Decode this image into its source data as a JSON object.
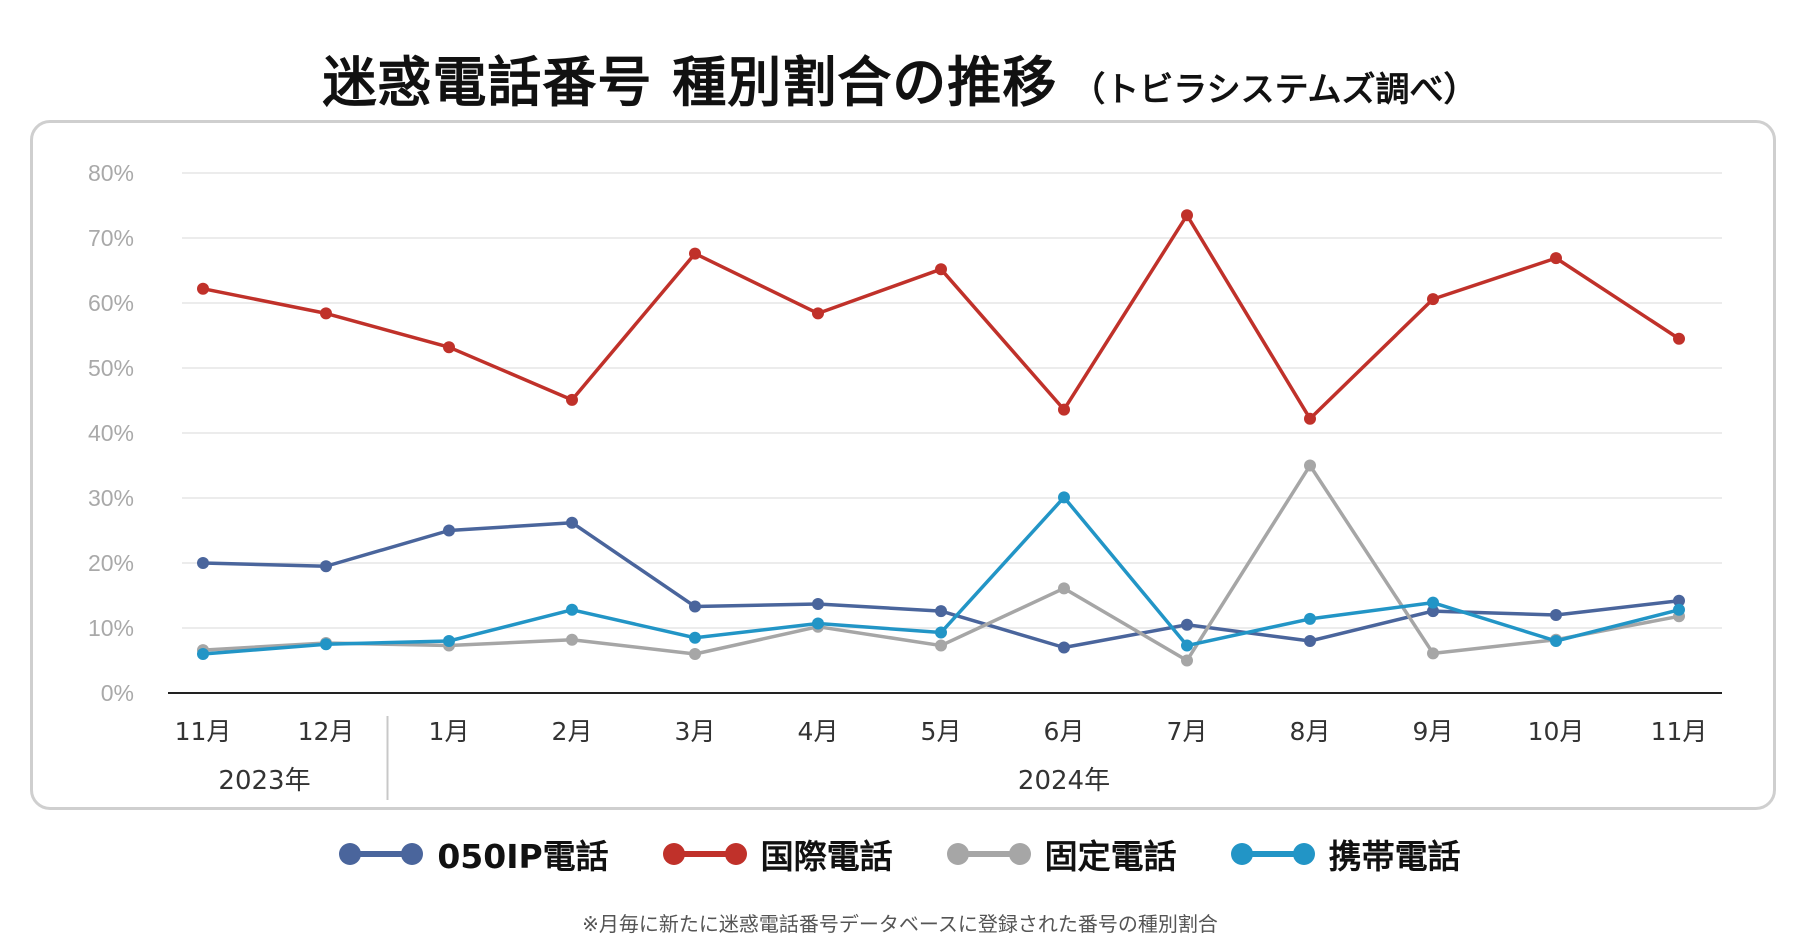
{
  "title": {
    "main": "迷惑電話番号 種別割合の推移",
    "sub": "（トビラシステムズ調べ）"
  },
  "footnote": "※月毎に新たに迷惑電話番号データベースに登録された番号の種別割合",
  "chart_data": {
    "type": "line",
    "title": "迷惑電話番号 種別割合の推移",
    "categories": [
      "11月",
      "12月",
      "1月",
      "2月",
      "3月",
      "4月",
      "5月",
      "6月",
      "7月",
      "8月",
      "9月",
      "10月",
      "11月"
    ],
    "year_groups": [
      {
        "label": "2023年",
        "start": 0,
        "end": 1
      },
      {
        "label": "2024年",
        "start": 2,
        "end": 12
      }
    ],
    "yticks": [
      "0%",
      "10%",
      "20%",
      "30%",
      "40%",
      "50%",
      "60%",
      "70%",
      "80%"
    ],
    "ylim": [
      0,
      80
    ],
    "grid": true,
    "legend_position": "bottom",
    "series": [
      {
        "name": "050IP電話",
        "color": "#4a659c",
        "values": [
          20,
          19.5,
          25,
          26.2,
          13.3,
          13.7,
          12.6,
          7,
          10.5,
          8,
          12.6,
          12,
          14.2
        ]
      },
      {
        "name": "国際電話",
        "color": "#c0312a",
        "values": [
          62.2,
          58.4,
          53.2,
          45.1,
          67.6,
          58.4,
          65.2,
          43.6,
          73.5,
          42.2,
          60.6,
          66.9,
          54.5
        ]
      },
      {
        "name": "固定電話",
        "color": "#a6a6a6",
        "values": [
          6.6,
          7.7,
          7.3,
          8.2,
          6,
          10.2,
          7.3,
          16.1,
          5,
          35,
          6.1,
          8.2,
          11.8
        ]
      },
      {
        "name": "携帯電話",
        "color": "#2295c6",
        "values": [
          6,
          7.5,
          8,
          12.8,
          8.5,
          10.7,
          9.3,
          30.1,
          7.3,
          11.4,
          13.9,
          8,
          12.8
        ]
      }
    ]
  }
}
